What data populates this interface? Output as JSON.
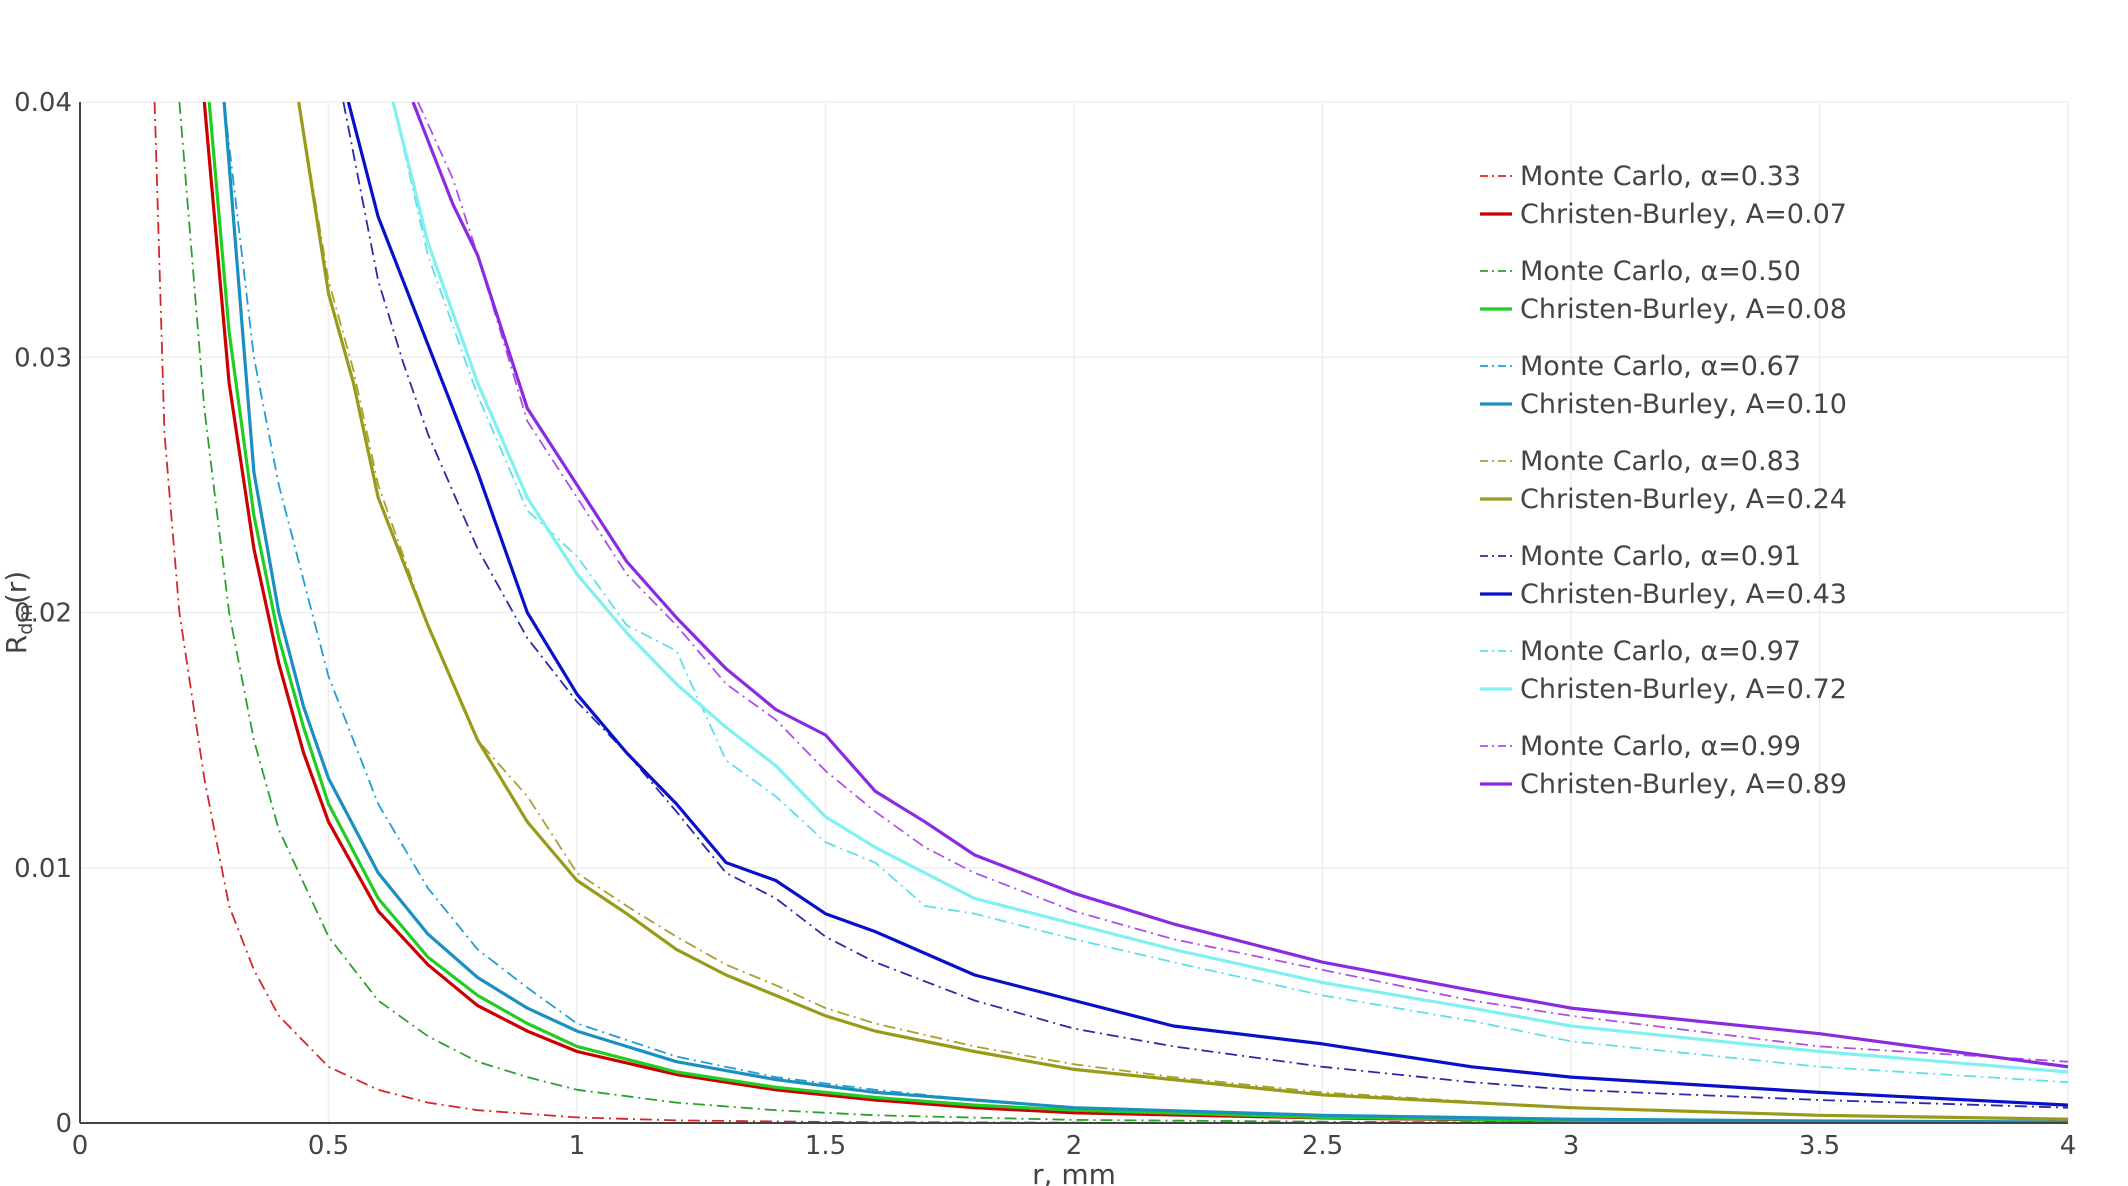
{
  "chart_data": {
    "type": "line",
    "title": "",
    "xlabel": "r, mm",
    "ylabel_main": "R",
    "ylabel_sub": "dm",
    "ylabel_tail": "(r)",
    "xlim": [
      0,
      4
    ],
    "ylim": [
      0,
      0.04
    ],
    "x_ticks": [
      {
        "value": 0,
        "label": "0"
      },
      {
        "value": 0.5,
        "label": "0.5"
      },
      {
        "value": 1,
        "label": "1"
      },
      {
        "value": 1.5,
        "label": "1.5"
      },
      {
        "value": 2,
        "label": "2"
      },
      {
        "value": 2.5,
        "label": "2.5"
      },
      {
        "value": 3,
        "label": "3"
      },
      {
        "value": 3.5,
        "label": "3.5"
      },
      {
        "value": 4,
        "label": "4"
      }
    ],
    "y_ticks": [
      {
        "value": 0,
        "label": "0"
      },
      {
        "value": 0.01,
        "label": "0.01"
      },
      {
        "value": 0.02,
        "label": "0.02"
      },
      {
        "value": 0.03,
        "label": "0.03"
      },
      {
        "value": 0.04,
        "label": "0.04"
      }
    ],
    "grid": true,
    "legend_position": "top-right",
    "series": [
      {
        "name": "Monte Carlo, α=0.33",
        "color": "#d62728",
        "style": "dashdot",
        "x": [
          0.15,
          0.17,
          0.2,
          0.25,
          0.3,
          0.35,
          0.4,
          0.5,
          0.6,
          0.7,
          0.8,
          1.0,
          1.2,
          1.5,
          2.0,
          3.0,
          4.0
        ],
        "y": [
          0.04,
          0.027,
          0.02,
          0.0135,
          0.0085,
          0.006,
          0.0042,
          0.0022,
          0.0013,
          0.0008,
          0.0005,
          0.00022,
          0.0001,
          4e-05,
          1e-05,
          0.0,
          0.0
        ]
      },
      {
        "name": "Christen-Burley, A=0.07",
        "color": "#cc0000",
        "style": "solid",
        "x": [
          0.25,
          0.3,
          0.35,
          0.4,
          0.45,
          0.5,
          0.6,
          0.7,
          0.8,
          0.9,
          1.0,
          1.2,
          1.4,
          1.6,
          1.8,
          2.0,
          2.5,
          3.0,
          3.5,
          4.0
        ],
        "y": [
          0.04,
          0.029,
          0.0225,
          0.018,
          0.0145,
          0.0118,
          0.0083,
          0.0062,
          0.0046,
          0.0036,
          0.0028,
          0.0019,
          0.0013,
          0.0009,
          0.0006,
          0.0004,
          0.0002,
          8e-05,
          4e-05,
          2e-05
        ]
      },
      {
        "name": "Monte Carlo, α=0.50",
        "color": "#2ca02c",
        "style": "dashdot",
        "x": [
          0.2,
          0.25,
          0.3,
          0.35,
          0.4,
          0.5,
          0.6,
          0.7,
          0.8,
          0.9,
          1.0,
          1.2,
          1.4,
          1.6,
          2.0,
          2.5,
          3.0,
          4.0
        ],
        "y": [
          0.04,
          0.028,
          0.02,
          0.015,
          0.0115,
          0.0073,
          0.0048,
          0.0034,
          0.0024,
          0.0018,
          0.0013,
          0.0008,
          0.0005,
          0.0003,
          0.00012,
          5e-05,
          2e-05,
          0.0
        ]
      },
      {
        "name": "Christen-Burley, A=0.08",
        "color": "#22cc22",
        "style": "solid",
        "x": [
          0.26,
          0.3,
          0.35,
          0.4,
          0.45,
          0.5,
          0.6,
          0.7,
          0.8,
          0.9,
          1.0,
          1.2,
          1.4,
          1.6,
          1.8,
          2.0,
          2.5,
          3.0,
          3.5,
          4.0
        ],
        "y": [
          0.04,
          0.031,
          0.0238,
          0.019,
          0.0155,
          0.0125,
          0.0088,
          0.0065,
          0.005,
          0.0039,
          0.003,
          0.002,
          0.0014,
          0.001,
          0.0007,
          0.0005,
          0.00022,
          0.0001,
          5e-05,
          2e-05
        ]
      },
      {
        "name": "Monte Carlo, α=0.67",
        "color": "#1f9fd0",
        "style": "dashdot",
        "x": [
          0.29,
          0.35,
          0.4,
          0.5,
          0.6,
          0.7,
          0.8,
          0.9,
          1.0,
          1.2,
          1.4,
          1.6,
          1.8,
          2.0,
          2.5,
          3.0,
          3.5,
          4.0
        ],
        "y": [
          0.04,
          0.03,
          0.025,
          0.0175,
          0.0125,
          0.0092,
          0.0068,
          0.0053,
          0.0039,
          0.0026,
          0.0018,
          0.0013,
          0.0009,
          0.0006,
          0.0003,
          0.00015,
          8e-05,
          4e-05
        ]
      },
      {
        "name": "Christen-Burley, A=0.10",
        "color": "#1a8fc0",
        "style": "solid",
        "x": [
          0.29,
          0.35,
          0.4,
          0.45,
          0.5,
          0.6,
          0.7,
          0.8,
          0.9,
          1.0,
          1.2,
          1.4,
          1.6,
          1.8,
          2.0,
          2.5,
          3.0,
          3.5,
          4.0
        ],
        "y": [
          0.04,
          0.0255,
          0.02,
          0.0163,
          0.0135,
          0.0098,
          0.0074,
          0.0057,
          0.0045,
          0.0036,
          0.0024,
          0.0017,
          0.0012,
          0.0009,
          0.0006,
          0.0003,
          0.00015,
          8e-05,
          4e-05
        ]
      },
      {
        "name": "Monte Carlo, α=0.83",
        "color": "#a8a030",
        "style": "dashdot",
        "x": [
          0.44,
          0.5,
          0.55,
          0.6,
          0.7,
          0.8,
          0.9,
          1.0,
          1.1,
          1.2,
          1.3,
          1.4,
          1.5,
          1.6,
          1.8,
          2.0,
          2.2,
          2.5,
          3.0,
          3.5,
          4.0
        ],
        "y": [
          0.04,
          0.033,
          0.0295,
          0.025,
          0.0195,
          0.015,
          0.0128,
          0.0098,
          0.0085,
          0.0073,
          0.0062,
          0.0054,
          0.0045,
          0.0039,
          0.003,
          0.0023,
          0.0018,
          0.0012,
          0.0006,
          0.0003,
          0.00015
        ]
      },
      {
        "name": "Christen-Burley, A=0.24",
        "color": "#9a9a1a",
        "style": "solid",
        "x": [
          0.44,
          0.5,
          0.55,
          0.6,
          0.7,
          0.8,
          0.9,
          1.0,
          1.1,
          1.2,
          1.3,
          1.4,
          1.5,
          1.6,
          1.8,
          2.0,
          2.2,
          2.5,
          3.0,
          3.5,
          4.0
        ],
        "y": [
          0.04,
          0.0325,
          0.029,
          0.0245,
          0.0195,
          0.015,
          0.0118,
          0.0095,
          0.0082,
          0.0068,
          0.0058,
          0.005,
          0.0042,
          0.0036,
          0.0028,
          0.0021,
          0.0017,
          0.0011,
          0.0006,
          0.0003,
          0.00015
        ]
      },
      {
        "name": "Monte Carlo, α=0.91",
        "color": "#2a2aa8",
        "style": "dashdot",
        "x": [
          0.53,
          0.6,
          0.65,
          0.7,
          0.8,
          0.9,
          1.0,
          1.1,
          1.2,
          1.3,
          1.4,
          1.5,
          1.6,
          1.8,
          2.0,
          2.2,
          2.5,
          2.8,
          3.0,
          3.5,
          4.0
        ],
        "y": [
          0.04,
          0.033,
          0.0298,
          0.027,
          0.0225,
          0.019,
          0.0165,
          0.0145,
          0.0122,
          0.0098,
          0.0088,
          0.0073,
          0.0063,
          0.0048,
          0.0037,
          0.003,
          0.0022,
          0.0016,
          0.0013,
          0.0009,
          0.0006
        ]
      },
      {
        "name": "Christen-Burley, A=0.43",
        "color": "#0a10c8",
        "style": "solid",
        "x": [
          0.54,
          0.6,
          0.65,
          0.7,
          0.8,
          0.9,
          1.0,
          1.1,
          1.2,
          1.3,
          1.4,
          1.5,
          1.6,
          1.8,
          2.0,
          2.2,
          2.5,
          2.8,
          3.0,
          3.5,
          4.0
        ],
        "y": [
          0.04,
          0.0355,
          0.033,
          0.0305,
          0.0255,
          0.02,
          0.0168,
          0.0145,
          0.0125,
          0.0102,
          0.0095,
          0.0082,
          0.0075,
          0.0058,
          0.0048,
          0.0038,
          0.0031,
          0.0022,
          0.0018,
          0.0012,
          0.0007
        ]
      },
      {
        "name": "Monte Carlo, α=0.97",
        "color": "#5fdfe8",
        "style": "dashdot",
        "x": [
          0.63,
          0.7,
          0.8,
          0.9,
          1.0,
          1.1,
          1.2,
          1.3,
          1.4,
          1.5,
          1.6,
          1.7,
          1.8,
          2.0,
          2.2,
          2.5,
          2.8,
          3.0,
          3.5,
          4.0
        ],
        "y": [
          0.04,
          0.034,
          0.0285,
          0.024,
          0.0222,
          0.0195,
          0.0185,
          0.0142,
          0.0128,
          0.011,
          0.0102,
          0.0085,
          0.0082,
          0.0072,
          0.0063,
          0.005,
          0.004,
          0.0032,
          0.0022,
          0.0016
        ]
      },
      {
        "name": "Christen-Burley, A=0.72",
        "color": "#80f0f0",
        "style": "solid",
        "x": [
          0.63,
          0.7,
          0.8,
          0.9,
          1.0,
          1.1,
          1.2,
          1.3,
          1.4,
          1.5,
          1.6,
          1.7,
          1.8,
          2.0,
          2.2,
          2.5,
          2.8,
          3.0,
          3.5,
          4.0
        ],
        "y": [
          0.04,
          0.0345,
          0.029,
          0.0245,
          0.0215,
          0.0192,
          0.0172,
          0.0155,
          0.014,
          0.012,
          0.0108,
          0.0098,
          0.0088,
          0.0078,
          0.0068,
          0.0055,
          0.0045,
          0.0038,
          0.0028,
          0.002
        ]
      },
      {
        "name": "Monte Carlo, α=0.99",
        "color": "#b04fe8",
        "style": "dashdot",
        "x": [
          0.68,
          0.75,
          0.8,
          0.9,
          1.0,
          1.1,
          1.2,
          1.3,
          1.4,
          1.5,
          1.6,
          1.7,
          1.8,
          2.0,
          2.2,
          2.5,
          2.8,
          3.0,
          3.5,
          4.0
        ],
        "y": [
          0.04,
          0.037,
          0.034,
          0.0275,
          0.0245,
          0.0215,
          0.0195,
          0.0172,
          0.0158,
          0.0138,
          0.0122,
          0.0108,
          0.0098,
          0.0083,
          0.0072,
          0.006,
          0.0048,
          0.0042,
          0.003,
          0.0024
        ]
      },
      {
        "name": "Christen-Burley, A=0.89",
        "color": "#8a2be2",
        "style": "solid",
        "x": [
          0.67,
          0.7,
          0.75,
          0.8,
          0.9,
          1.0,
          1.1,
          1.2,
          1.3,
          1.4,
          1.5,
          1.6,
          1.7,
          1.8,
          2.0,
          2.2,
          2.5,
          2.8,
          3.0,
          3.5,
          4.0
        ],
        "y": [
          0.04,
          0.0385,
          0.036,
          0.034,
          0.028,
          0.025,
          0.022,
          0.0198,
          0.0178,
          0.0162,
          0.0152,
          0.013,
          0.0118,
          0.0105,
          0.009,
          0.0078,
          0.0063,
          0.0052,
          0.0045,
          0.0035,
          0.0022
        ]
      }
    ]
  }
}
